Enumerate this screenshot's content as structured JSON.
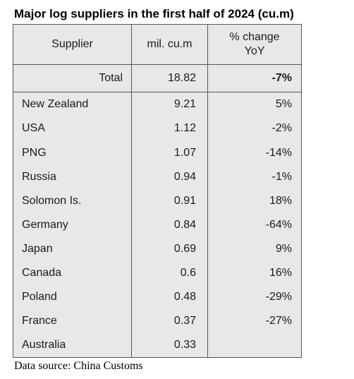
{
  "title": "Major log suppliers in the first half of 2024 (cu.m)",
  "source": "Data source: China Customs",
  "chart_data": {
    "type": "table",
    "columns": [
      "Supplier",
      "mil. cu.m",
      "% change YoY"
    ],
    "total": {
      "supplier": "Total",
      "value": "18.82",
      "change": "-7%"
    },
    "rows": [
      {
        "supplier": "New Zealand",
        "value": "9.21",
        "change": "5%"
      },
      {
        "supplier": "USA",
        "value": "1.12",
        "change": "-2%"
      },
      {
        "supplier": "PNG",
        "value": "1.07",
        "change": "-14%"
      },
      {
        "supplier": "Russia",
        "value": "0.94",
        "change": "-1%"
      },
      {
        "supplier": "Solomon Is.",
        "value": "0.91",
        "change": "18%"
      },
      {
        "supplier": "Germany",
        "value": "0.84",
        "change": "-64%"
      },
      {
        "supplier": "Japan",
        "value": "0.69",
        "change": "9%"
      },
      {
        "supplier": "Canada",
        "value": "0.6",
        "change": "16%"
      },
      {
        "supplier": "Poland",
        "value": "0.48",
        "change": "-29%"
      },
      {
        "supplier": "France",
        "value": "0.37",
        "change": "-27%"
      },
      {
        "supplier": "Australia",
        "value": "0.33",
        "change": ""
      }
    ]
  }
}
